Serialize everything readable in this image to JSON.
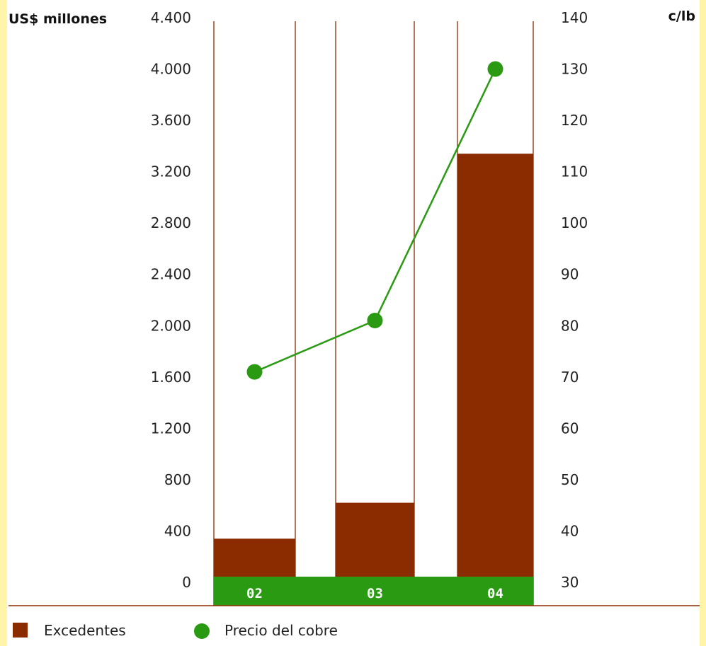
{
  "chart_data": {
    "type": "bar",
    "title": "",
    "categories": [
      "02",
      "03",
      "04"
    ],
    "series": [
      {
        "name": "Excedentes",
        "type": "bar",
        "axis": "left",
        "color": "#8b2c00",
        "values": [
          340,
          620,
          3340
        ]
      },
      {
        "name": "Precio del cobre",
        "type": "line",
        "axis": "right",
        "color": "#2a9a12",
        "values": [
          71,
          81,
          130
        ]
      }
    ],
    "y_left": {
      "label": "US$ millones",
      "ylim": [
        0,
        4400
      ],
      "ticks": [
        0,
        400,
        800,
        1200,
        1600,
        2000,
        2400,
        2800,
        3200,
        3600,
        4000,
        4400
      ],
      "tick_labels": [
        "0",
        "400",
        "800",
        "1.200",
        "1.600",
        "2.000",
        "2.400",
        "2.800",
        "3.200",
        "3.600",
        "4.000",
        "4.400"
      ]
    },
    "y_right": {
      "label": "c/lb",
      "ylim": [
        30,
        140
      ],
      "ticks": [
        30,
        40,
        50,
        60,
        70,
        80,
        90,
        100,
        110,
        120,
        130,
        140
      ],
      "tick_labels": [
        "30",
        "40",
        "50",
        "60",
        "70",
        "80",
        "90",
        "100",
        "110",
        "120",
        "130",
        "140"
      ]
    },
    "category_band_color": "#2a9a12",
    "grid": false,
    "legend": {
      "position": "bottom-left",
      "items": [
        {
          "label": "Excedentes",
          "marker": "square",
          "color": "#8b2c00"
        },
        {
          "label": "Precio del cobre",
          "marker": "circle",
          "color": "#2a9a12"
        }
      ]
    }
  }
}
